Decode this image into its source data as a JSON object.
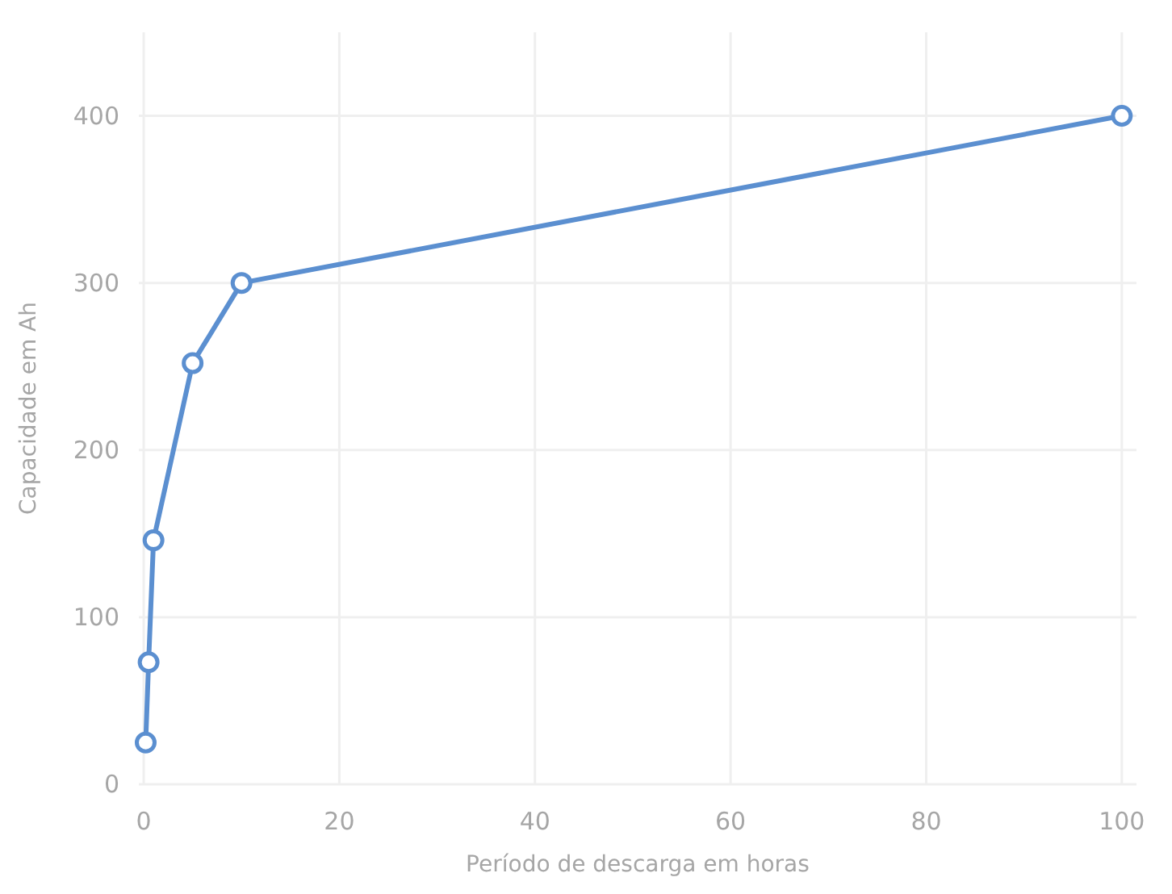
{
  "chart_data": {
    "type": "line",
    "xlabel": "Período de descarga em horas",
    "ylabel": "Capacidade em Ah",
    "x": [
      0.2,
      0.5,
      1,
      5,
      10,
      100
    ],
    "series": [
      {
        "color": "#5b8fd0",
        "values": [
          25,
          73,
          146,
          252,
          300,
          400
        ]
      }
    ],
    "xlim": [
      -0.5,
      101.5
    ],
    "ylim": [
      0,
      450
    ],
    "xticks": [
      0,
      20,
      40,
      60,
      80,
      100
    ],
    "yticks": [
      0,
      100,
      200,
      300,
      400
    ],
    "grid": true,
    "marker": "circle",
    "line_style": "solid"
  }
}
